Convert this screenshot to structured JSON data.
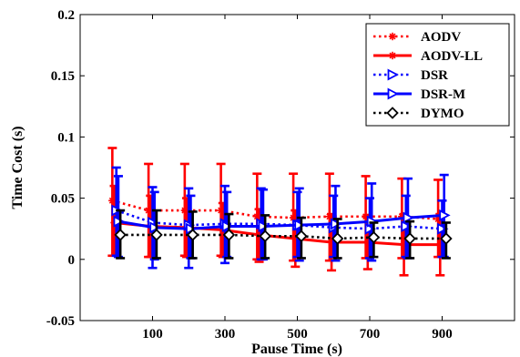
{
  "chart_data": {
    "type": "line",
    "title": "",
    "xlabel": "Pause Time (s)",
    "ylabel": "Time Cost (s)",
    "xlim": [
      -100,
      1100
    ],
    "ylim": [
      -0.05,
      0.2
    ],
    "xticks": [
      100,
      300,
      500,
      700,
      900
    ],
    "xtick_labels": [
      "100",
      "300",
      "500",
      "700",
      "900"
    ],
    "yticks": [
      -0.05,
      0,
      0.05,
      0.1,
      0.15,
      0.2
    ],
    "ytick_labels": [
      "-0.05",
      "0",
      "0.05",
      "0.1",
      "0.15",
      "0.2"
    ],
    "grid": false,
    "legend_position": "top-right",
    "x": [
      0,
      100,
      200,
      300,
      400,
      500,
      600,
      700,
      800,
      900
    ],
    "series": [
      {
        "name": "AODV",
        "color": "#ff0000",
        "line_style": "dotted",
        "marker": "asterisk",
        "values": [
          0.048,
          0.04,
          0.04,
          0.04,
          0.035,
          0.034,
          0.035,
          0.035,
          0.035,
          0.033
        ],
        "error_low": [
          0.003,
          0.002,
          0.003,
          0.003,
          0.0,
          -0.001,
          -0.001,
          0.001,
          0.001,
          0.002
        ],
        "error_high": [
          0.091,
          0.078,
          0.078,
          0.078,
          0.07,
          0.07,
          0.07,
          0.068,
          0.066,
          0.065
        ]
      },
      {
        "name": "AODV-LL",
        "color": "#ff0000",
        "line_style": "solid",
        "marker": "asterisk",
        "values": [
          0.03,
          0.027,
          0.026,
          0.024,
          0.02,
          0.017,
          0.014,
          0.014,
          0.012,
          0.012
        ],
        "error_low": [
          0.003,
          0.002,
          0.002,
          0.002,
          -0.002,
          -0.006,
          -0.009,
          -0.008,
          -0.013,
          -0.013
        ],
        "error_high": [
          0.06,
          0.052,
          0.05,
          0.046,
          0.041,
          0.04,
          0.037,
          0.036,
          0.037,
          0.037
        ]
      },
      {
        "name": "DSR",
        "color": "#0000ff",
        "line_style": "dotted",
        "marker": "triangle-right",
        "values": [
          0.04,
          0.03,
          0.028,
          0.029,
          0.029,
          0.028,
          0.026,
          0.025,
          0.027,
          0.025
        ],
        "error_low": [
          0.003,
          -0.007,
          -0.007,
          -0.003,
          0.0,
          0.002,
          0.002,
          0.001,
          0.002,
          0.002
        ],
        "error_high": [
          0.075,
          0.059,
          0.058,
          0.06,
          0.058,
          0.055,
          0.052,
          0.05,
          0.052,
          0.048
        ]
      },
      {
        "name": "DSR-M",
        "color": "#0000ff",
        "line_style": "solid",
        "marker": "triangle-right",
        "values": [
          0.031,
          0.026,
          0.025,
          0.027,
          0.027,
          0.028,
          0.029,
          0.031,
          0.034,
          0.036
        ],
        "error_low": [
          0.002,
          0.0,
          0.001,
          0.002,
          0.0,
          -0.001,
          -0.001,
          -0.001,
          0.001,
          0.002
        ],
        "error_high": [
          0.068,
          0.055,
          0.052,
          0.055,
          0.057,
          0.058,
          0.06,
          0.062,
          0.066,
          0.069
        ]
      },
      {
        "name": "DYMO",
        "color": "#000000",
        "line_style": "dotted",
        "marker": "diamond",
        "values": [
          0.02,
          0.02,
          0.02,
          0.02,
          0.019,
          0.019,
          0.017,
          0.018,
          0.017,
          0.017
        ],
        "error_low": [
          0.001,
          0.001,
          0.001,
          0.001,
          0.001,
          0.001,
          0.001,
          0.002,
          0.001,
          0.001
        ],
        "error_high": [
          0.04,
          0.04,
          0.039,
          0.037,
          0.036,
          0.034,
          0.033,
          0.03,
          0.031,
          0.03
        ]
      }
    ]
  }
}
